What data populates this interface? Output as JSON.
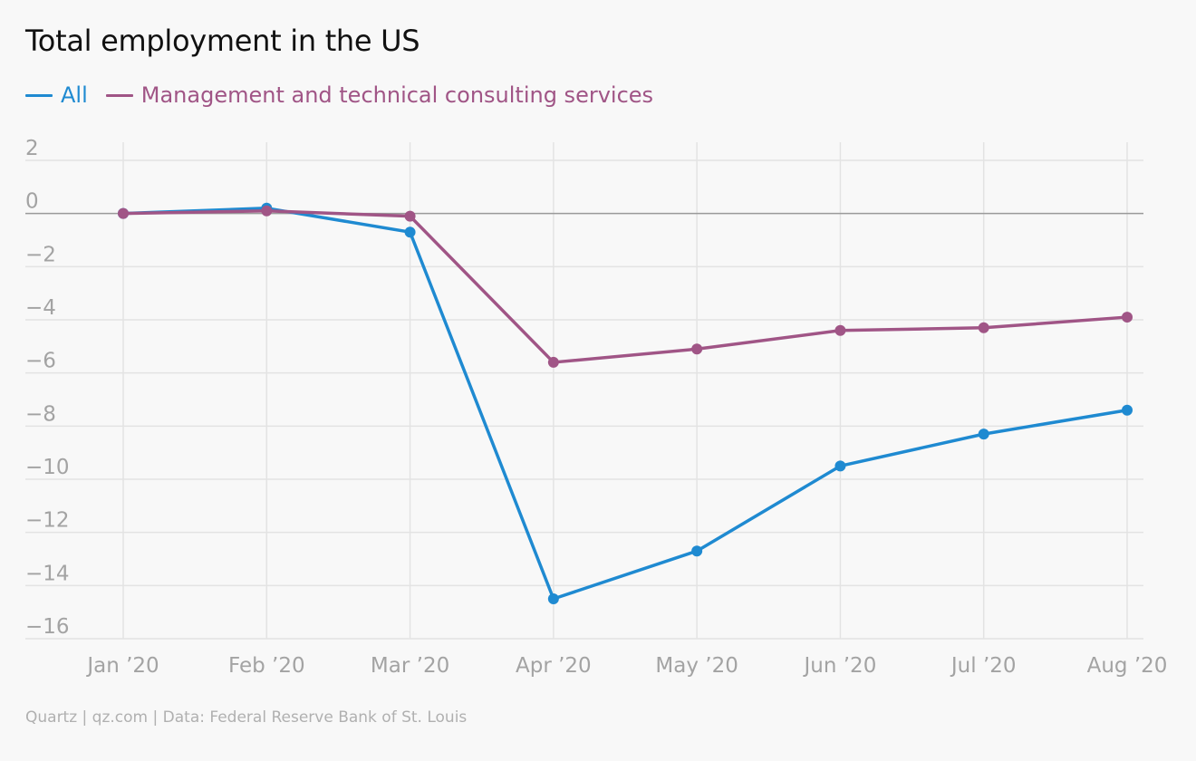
{
  "title": "Total employment in the US",
  "source": "Quartz | qz.com | Data: Federal Reserve Bank of St. Louis",
  "chart_data": {
    "type": "line",
    "title": "Total employment in the US",
    "xlabel": "",
    "ylabel": "",
    "categories": [
      "Jan ’20",
      "Feb ’20",
      "Mar ’20",
      "Apr ’20",
      "May ’20",
      "Jun ’20",
      "Jul ’20",
      "Aug ’20"
    ],
    "series": [
      {
        "name": "All",
        "color": "#1f8ad1",
        "values": [
          0,
          0.2,
          -0.7,
          -14.5,
          -12.7,
          -9.5,
          -8.3,
          -7.4
        ]
      },
      {
        "name": "Management and technical consulting services",
        "color": "#a05586",
        "values": [
          0,
          0.1,
          -0.1,
          -5.6,
          -5.1,
          -4.4,
          -4.3,
          -3.9
        ]
      }
    ],
    "ylim": [
      -16,
      2
    ],
    "yticks": [
      2,
      0,
      -2,
      -4,
      -6,
      -8,
      -10,
      -12,
      -14,
      -16
    ],
    "ytick_labels": [
      "2",
      "0",
      "−2",
      "−4",
      "−6",
      "−8",
      "−10",
      "−12",
      "−14",
      "−16"
    ],
    "grid": true,
    "legend": "top-left",
    "zero_line": true
  }
}
